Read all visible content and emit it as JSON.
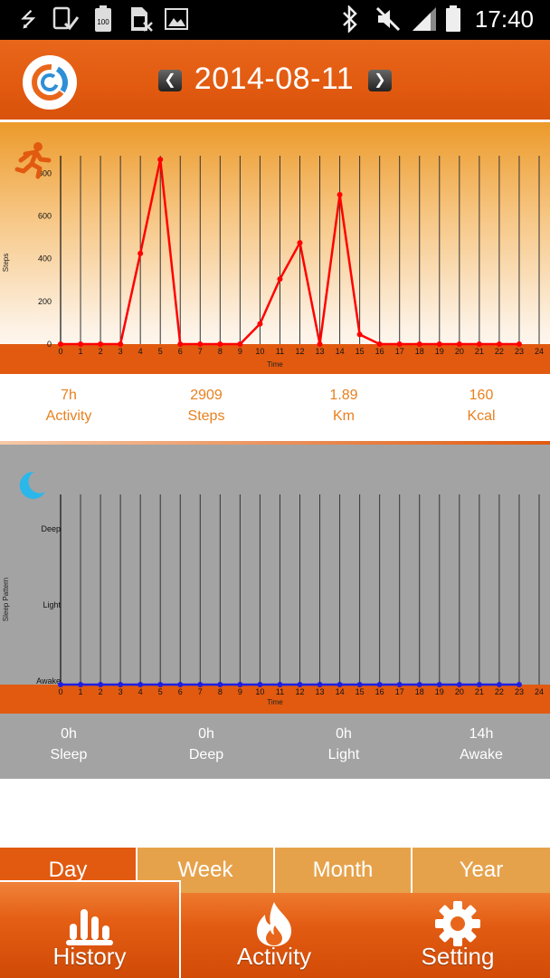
{
  "status_bar": {
    "time": "17:40",
    "battery_text": "100",
    "icons": [
      "usb-icon",
      "device-check-icon",
      "battery-icon",
      "sim-off-icon",
      "image-icon",
      "bluetooth-icon",
      "mute-icon",
      "signal-icon",
      "battery-status-icon"
    ]
  },
  "header": {
    "date": "2014-08-11",
    "prev_glyph": "❮",
    "next_glyph": "❯",
    "colors": {
      "bar": "#e15a10",
      "logo_blue": "#2f8fd6",
      "logo_orange": "#e8661b"
    }
  },
  "activity_chart": {
    "icon": "runner-icon",
    "chart_data": {
      "type": "line",
      "ylabel": "Steps",
      "xlabel": "Time",
      "x": [
        0,
        1,
        2,
        3,
        4,
        5,
        6,
        7,
        8,
        9,
        10,
        11,
        12,
        13,
        14,
        15,
        16,
        17,
        18,
        19,
        20,
        21,
        22,
        23
      ],
      "x_ticks": [
        "0",
        "1",
        "2",
        "3",
        "4",
        "5",
        "6",
        "7",
        "8",
        "9",
        "10",
        "11",
        "12",
        "13",
        "14",
        "15",
        "16",
        "17",
        "18",
        "19",
        "20",
        "21",
        "22",
        "23",
        "24"
      ],
      "y_ticks": [
        "0",
        "200",
        "400",
        "600",
        "800"
      ],
      "xlim": [
        0,
        24
      ],
      "ylim": [
        0,
        870
      ],
      "series": [
        {
          "values": [
            0,
            0,
            0,
            0,
            425,
            865,
            0,
            0,
            0,
            0,
            95,
            305,
            475,
            0,
            700,
            45,
            0,
            0,
            0,
            0,
            0,
            0,
            0,
            0
          ],
          "color": "#ff0000"
        }
      ],
      "grid": "vertical"
    }
  },
  "activity_stats": [
    {
      "value": "7h",
      "label": "Activity"
    },
    {
      "value": "2909",
      "label": "Steps"
    },
    {
      "value": "1.89",
      "label": "Km"
    },
    {
      "value": "160",
      "label": "Kcal"
    }
  ],
  "sleep_chart": {
    "icon": "moon-icon",
    "chart_data": {
      "type": "line",
      "ylabel": "Sleep Pattern",
      "xlabel": "Time",
      "x": [
        0,
        1,
        2,
        3,
        4,
        5,
        6,
        7,
        8,
        9,
        10,
        11,
        12,
        13,
        14,
        15,
        16,
        17,
        18,
        19,
        20,
        21,
        22,
        23
      ],
      "x_ticks": [
        "0",
        "1",
        "2",
        "3",
        "4",
        "5",
        "6",
        "7",
        "8",
        "9",
        "10",
        "11",
        "12",
        "13",
        "14",
        "15",
        "16",
        "17",
        "18",
        "19",
        "20",
        "21",
        "22",
        "23",
        "24"
      ],
      "y_categories": [
        "Awake",
        "Light",
        "Deep"
      ],
      "xlim": [
        0,
        24
      ],
      "series": [
        {
          "values": [
            0,
            0,
            0,
            0,
            0,
            0,
            0,
            0,
            0,
            0,
            0,
            0,
            0,
            0,
            0,
            0,
            0,
            0,
            0,
            0,
            0,
            0,
            0,
            0
          ],
          "color": "#1f1fe0"
        }
      ],
      "grid": "vertical"
    }
  },
  "sleep_stats": [
    {
      "value": "0h",
      "label": "Sleep"
    },
    {
      "value": "0h",
      "label": "Deep"
    },
    {
      "value": "0h",
      "label": "Light"
    },
    {
      "value": "14h",
      "label": "Awake"
    }
  ],
  "range_tabs": [
    {
      "label": "Day",
      "active": true
    },
    {
      "label": "Week",
      "active": false
    },
    {
      "label": "Month",
      "active": false
    },
    {
      "label": "Year",
      "active": false
    }
  ],
  "bottom_nav": [
    {
      "label": "History",
      "icon": "bar-chart-icon",
      "active": true
    },
    {
      "label": "Activity",
      "icon": "flame-icon",
      "active": false
    },
    {
      "label": "Setting",
      "icon": "gear-icon",
      "active": false
    }
  ]
}
